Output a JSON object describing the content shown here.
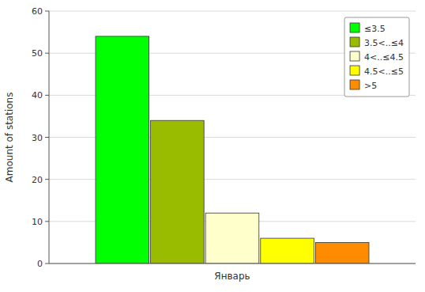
{
  "chart_data": {
    "type": "bar",
    "categories": [
      "Январь"
    ],
    "series": [
      {
        "name": "≤3.5",
        "color": "#00ff00",
        "values": [
          54
        ]
      },
      {
        "name": "3.5<..≤4",
        "color": "#99bb00",
        "values": [
          34
        ]
      },
      {
        "name": "4<..≤4.5",
        "color": "#ffffcc",
        "values": [
          12
        ]
      },
      {
        "name": "4.5<..≤5",
        "color": "#ffff00",
        "values": [
          6
        ]
      },
      {
        "name": ">5",
        "color": "#ff8c00",
        "values": [
          5
        ]
      }
    ],
    "ylabel": "Amount of stations",
    "ylim": [
      0,
      60
    ],
    "yticks": [
      0,
      10,
      20,
      30,
      40,
      50,
      60
    ],
    "grid": true,
    "legend": "upper right"
  }
}
